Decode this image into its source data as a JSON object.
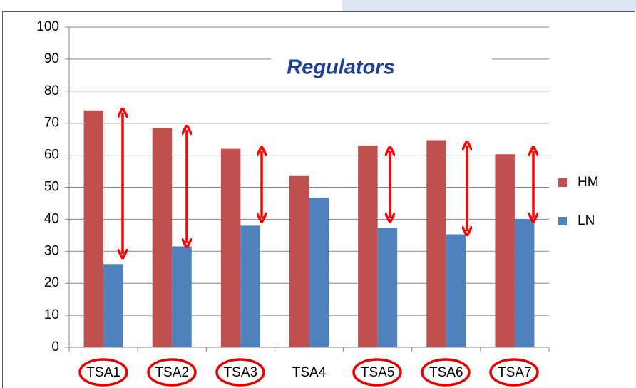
{
  "chart_data": {
    "type": "bar",
    "annotation": "Regulators",
    "categories": [
      "TSA1",
      "TSA2",
      "TSA3",
      "TSA4",
      "TSA5",
      "TSA6",
      "TSA7"
    ],
    "series": [
      {
        "name": "HM",
        "color": "#c0504d",
        "values": [
          74,
          68.5,
          62,
          53.5,
          63,
          64.7,
          60.3
        ]
      },
      {
        "name": "LN",
        "color": "#4f81bd",
        "values": [
          26,
          31.5,
          38,
          46.7,
          37.2,
          35.3,
          40
        ]
      }
    ],
    "ylim": [
      0,
      100
    ],
    "yticks": [
      0,
      10,
      20,
      30,
      40,
      50,
      60,
      70,
      80,
      90,
      100
    ],
    "grid": true,
    "legend": "right"
  }
}
